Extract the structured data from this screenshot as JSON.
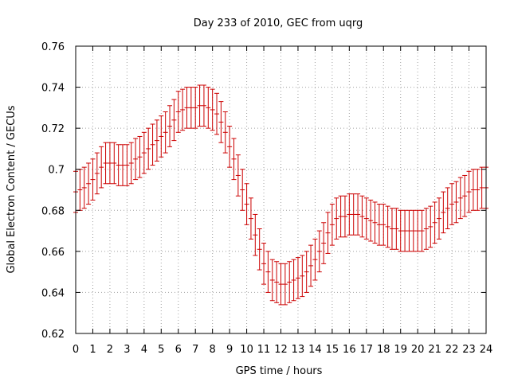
{
  "chart_data": {
    "type": "line",
    "title": "Day 233 of 2010, GEC from uqrg",
    "xlabel": "GPS time / hours",
    "ylabel": "Global Electron Content / GECUs",
    "xlim": [
      0,
      24
    ],
    "ylim": [
      0.62,
      0.76
    ],
    "grid": true,
    "x_ticks": [
      "0",
      "1",
      "2",
      "3",
      "4",
      "5",
      "6",
      "7",
      "8",
      "9",
      "10",
      "11",
      "12",
      "13",
      "14",
      "15",
      "16",
      "17",
      "18",
      "19",
      "20",
      "21",
      "22",
      "23",
      "24"
    ],
    "y_ticks": [
      "0.62",
      "0.64",
      "0.66",
      "0.68",
      "0.7",
      "0.72",
      "0.74",
      "0.76"
    ],
    "error": 0.01,
    "series": [
      {
        "name": "GEC",
        "color": "#cc0000",
        "x": [
          0,
          0.25,
          0.5,
          0.75,
          1,
          1.25,
          1.5,
          1.75,
          2,
          2.25,
          2.5,
          2.75,
          3,
          3.25,
          3.5,
          3.75,
          4,
          4.25,
          4.5,
          4.75,
          5,
          5.25,
          5.5,
          5.75,
          6,
          6.25,
          6.5,
          6.75,
          7,
          7.25,
          7.5,
          7.75,
          8,
          8.25,
          8.5,
          8.75,
          9,
          9.25,
          9.5,
          9.75,
          10,
          10.25,
          10.5,
          10.75,
          11,
          11.25,
          11.5,
          11.75,
          12,
          12.25,
          12.5,
          12.75,
          13,
          13.25,
          13.5,
          13.75,
          14,
          14.25,
          14.5,
          14.75,
          15,
          15.25,
          15.5,
          15.75,
          16,
          16.25,
          16.5,
          16.75,
          17,
          17.25,
          17.5,
          17.75,
          18,
          18.25,
          18.5,
          18.75,
          19,
          19.25,
          19.5,
          19.75,
          20,
          20.25,
          20.5,
          20.75,
          21,
          21.25,
          21.5,
          21.75,
          22,
          22.25,
          22.5,
          22.75,
          23,
          23.25,
          23.5,
          23.75,
          24
        ],
        "y": [
          0.689,
          0.69,
          0.691,
          0.693,
          0.695,
          0.698,
          0.701,
          0.703,
          0.703,
          0.703,
          0.702,
          0.702,
          0.702,
          0.703,
          0.705,
          0.706,
          0.708,
          0.71,
          0.712,
          0.714,
          0.716,
          0.718,
          0.721,
          0.724,
          0.728,
          0.729,
          0.73,
          0.73,
          0.73,
          0.731,
          0.731,
          0.73,
          0.729,
          0.727,
          0.723,
          0.718,
          0.711,
          0.705,
          0.697,
          0.69,
          0.683,
          0.676,
          0.668,
          0.661,
          0.654,
          0.65,
          0.646,
          0.645,
          0.644,
          0.644,
          0.645,
          0.646,
          0.647,
          0.648,
          0.65,
          0.653,
          0.656,
          0.66,
          0.664,
          0.669,
          0.673,
          0.676,
          0.677,
          0.677,
          0.678,
          0.678,
          0.678,
          0.677,
          0.676,
          0.675,
          0.674,
          0.673,
          0.673,
          0.672,
          0.671,
          0.671,
          0.67,
          0.67,
          0.67,
          0.67,
          0.67,
          0.67,
          0.671,
          0.672,
          0.674,
          0.676,
          0.679,
          0.681,
          0.683,
          0.684,
          0.686,
          0.687,
          0.689,
          0.69,
          0.69,
          0.691,
          0.691
        ]
      }
    ]
  }
}
